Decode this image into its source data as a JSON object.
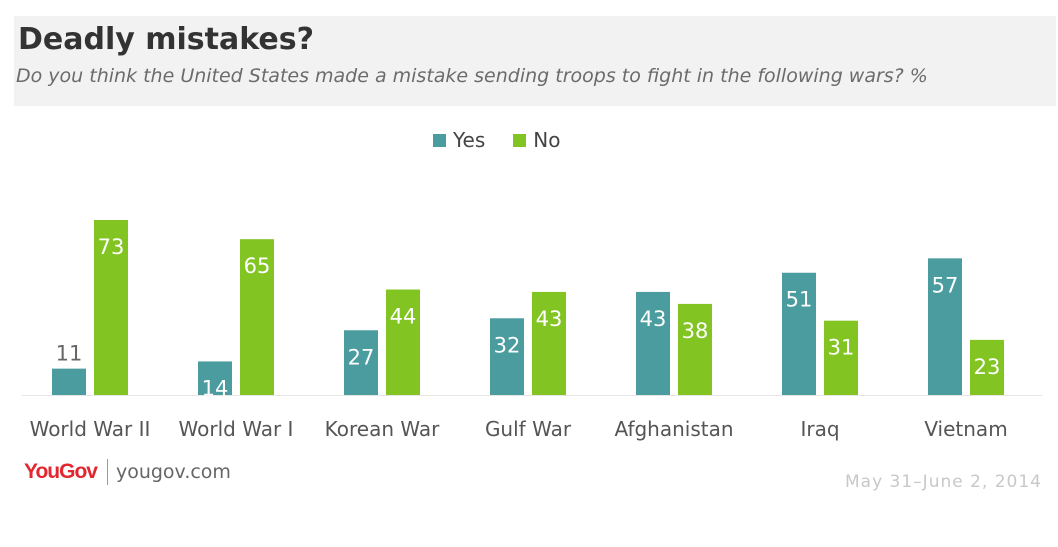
{
  "header": {
    "title": "Deadly mistakes?",
    "subtitle": "Do you think the United States made a mistake sending troops to fight in the following wars? %"
  },
  "footer": {
    "brand_logo": "YouGov",
    "brand_url": "yougov.com",
    "date": "May 31–June 2, 2014"
  },
  "chart_data": {
    "type": "bar",
    "title": "Deadly mistakes?",
    "subtitle": "Do you think the United States made a mistake sending troops to fight in the following wars? %",
    "categories": [
      "World War II",
      "World War I",
      "Korean War",
      "Gulf War",
      "Afghanistan",
      "Iraq",
      "Vietnam"
    ],
    "series": [
      {
        "name": "Yes",
        "color": "#4a9c9f",
        "values": [
          11,
          14,
          27,
          32,
          43,
          51,
          57
        ]
      },
      {
        "name": "No",
        "color": "#82c523",
        "values": [
          73,
          65,
          44,
          43,
          38,
          31,
          23
        ]
      }
    ],
    "ylim": [
      0,
      73
    ],
    "grid": false,
    "legend": "top-center",
    "data_labels": true
  }
}
